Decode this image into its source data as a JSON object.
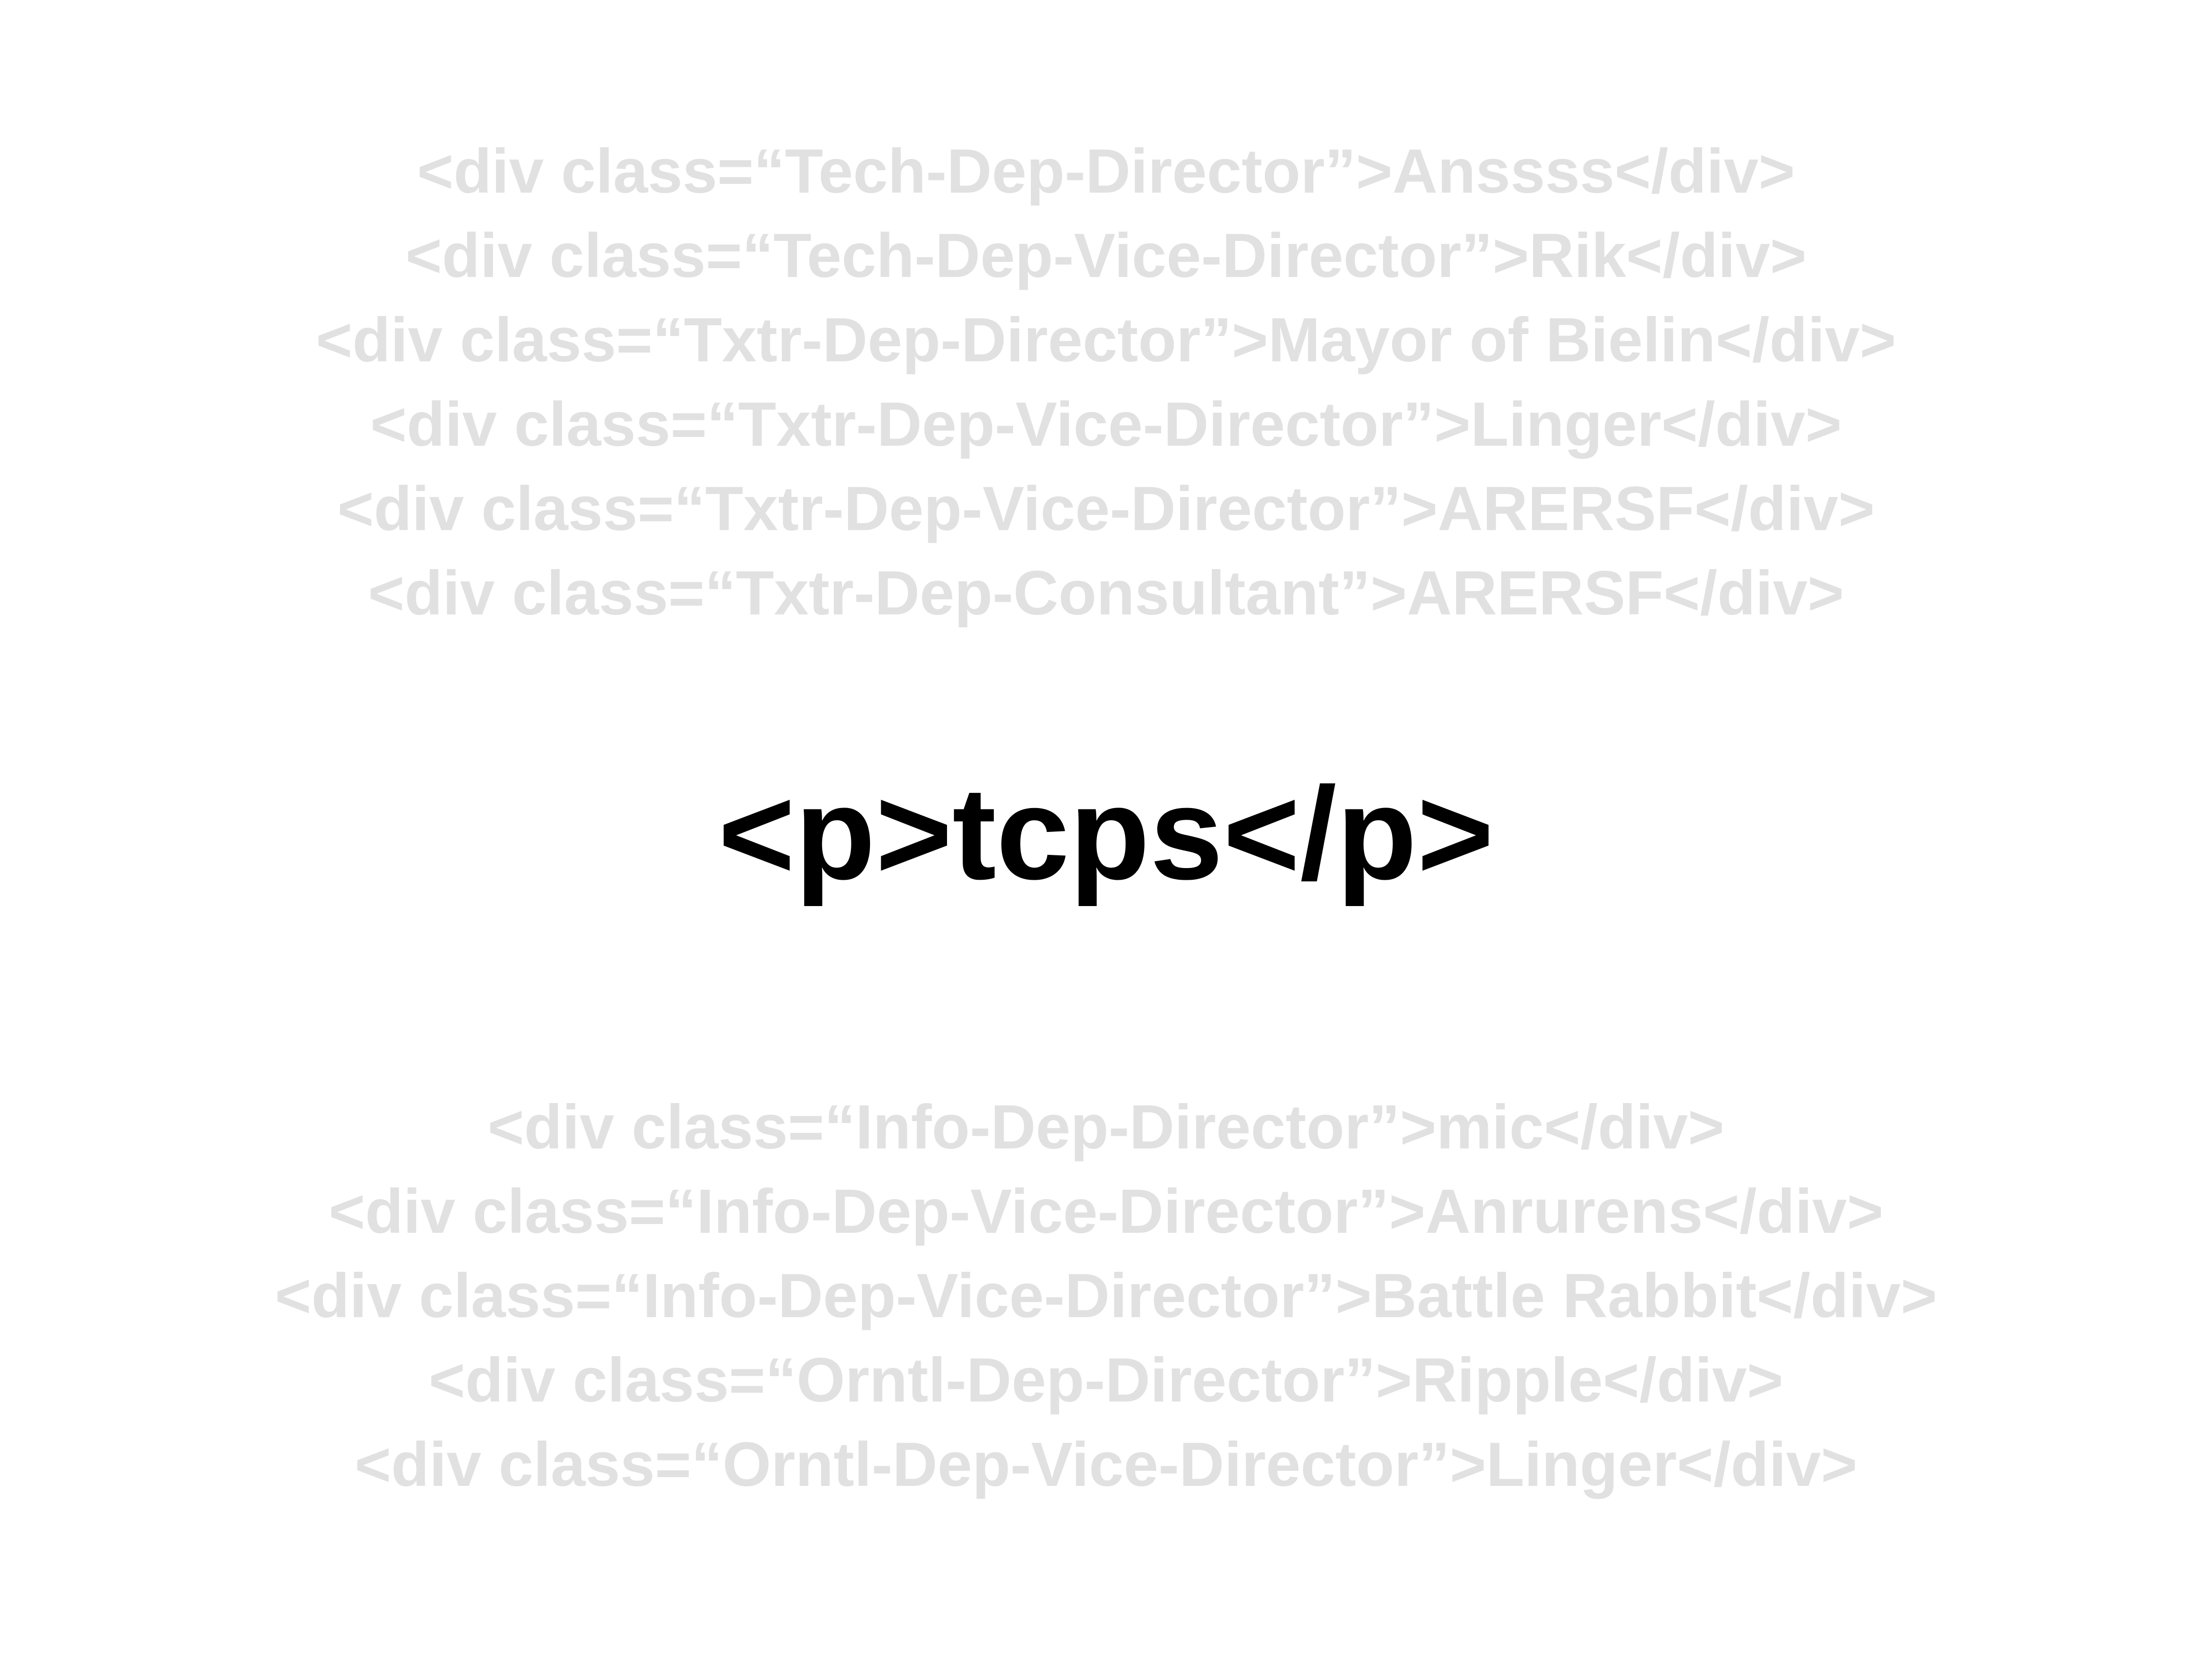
{
  "top_lines": [
    "<div class=“Tech-Dep-Director”>Anssss</div>",
    "<div class=“Tech-Dep-Vice-Director”>Rik</div>",
    "<div class=“Txtr-Dep-Director”>Mayor of Bielin</div>",
    "<div class=“Txtr-Dep-Vice-Director”>Linger</div>",
    "<div class=“Txtr-Dep-Vice-Director”>ARERSF</div>",
    "<div class=“Txtr-Dep-Consultant”>ARERSF</div>"
  ],
  "center_text": "<p>tcps</p>",
  "bottom_lines": [
    "<div class=“Info-Dep-Director”>mic</div>",
    "<div class=“Info-Dep-Vice-Director”>Anrurens</div>",
    "<div class=“Info-Dep-Vice-Director”>Battle Rabbit</div>",
    "<div class=“Orntl-Dep-Director”>Ripple</div>",
    "<div class=“Orntl-Dep-Vice-Director”>Linger</div>"
  ],
  "colors": {
    "background": "#ffffff",
    "faded_text": "#e1e1e1",
    "main_text": "#000000"
  }
}
